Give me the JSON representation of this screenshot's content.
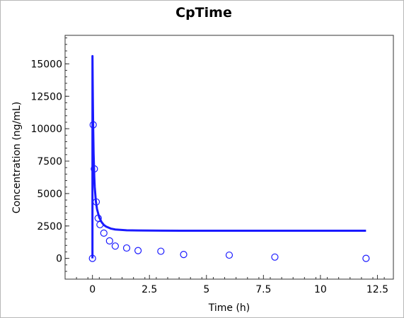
{
  "chart_data": {
    "type": "scatter",
    "title": "CpTime",
    "xlabel": "Time (h)",
    "ylabel": "Concentration (ng/mL)",
    "xlim": [
      -1.2,
      13.2
    ],
    "ylim": [
      -1600,
      17200
    ],
    "x_ticks": [
      0,
      2.5,
      5,
      7.5,
      10,
      12.5
    ],
    "x_tick_labels": [
      "0",
      "2.5",
      "5",
      "7.5",
      "10",
      "12.5"
    ],
    "y_ticks": [
      0,
      2500,
      5000,
      7500,
      10000,
      12500,
      15000
    ],
    "y_tick_labels": [
      "0",
      "2500",
      "5000",
      "7500",
      "10000",
      "12500",
      "15000"
    ],
    "grid": false,
    "color": "#1a1aff",
    "series": [
      {
        "style": "line",
        "x": [
          0,
          0.001,
          0.01,
          0.02,
          0.03,
          0.05,
          0.08,
          0.1,
          0.15,
          0.2,
          0.3,
          0.4,
          0.5,
          0.6,
          0.8,
          1.0,
          1.5,
          2,
          3,
          4,
          6,
          8,
          10,
          12
        ],
        "y": [
          0,
          15600,
          13600,
          11800,
          10300,
          8100,
          6300,
          5500,
          4400,
          3800,
          3150,
          2800,
          2580,
          2450,
          2300,
          2230,
          2170,
          2150,
          2140,
          2135,
          2130,
          2130,
          2130,
          2130
        ]
      },
      {
        "style": "scatter",
        "x": [
          0,
          0.033,
          0.083,
          0.167,
          0.25,
          0.33,
          0.5,
          0.75,
          1.0,
          1.5,
          2.0,
          3.0,
          4.0,
          6.0,
          8.0,
          12.0
        ],
        "y": [
          0,
          10300,
          6900,
          4350,
          3100,
          2600,
          1950,
          1350,
          950,
          800,
          600,
          550,
          300,
          250,
          100,
          0
        ]
      }
    ]
  }
}
